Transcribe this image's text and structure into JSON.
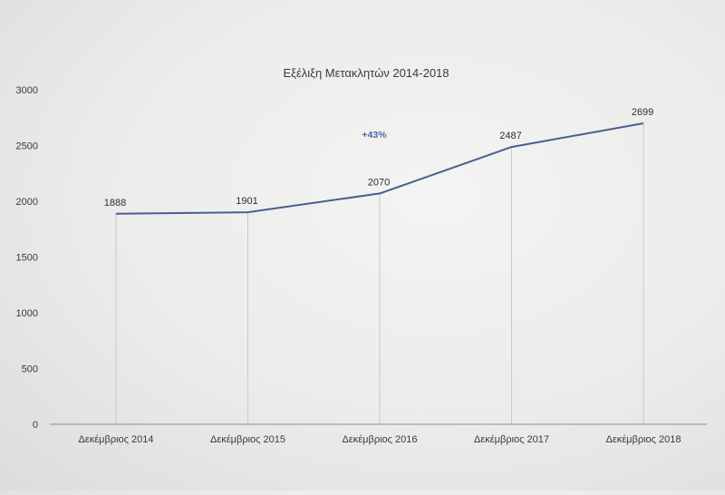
{
  "colors": {
    "line": "#4a5f8f",
    "annotation": "#4b6aa8",
    "axis": "#8c8c8c",
    "droplines": "#c9c9c9"
  },
  "chart_data": {
    "type": "line",
    "title": "Εξέλιξη Μετακλητών 2014-2018",
    "xlabel": "",
    "ylabel": "",
    "categories": [
      "Δεκέμβριος 2014",
      "Δεκέμβριος 2015",
      "Δεκέμβριος 2016",
      "Δεκέμβριος 2017",
      "Δεκέμβριος 2018"
    ],
    "series": [
      {
        "values": [
          1888,
          1901,
          2070,
          2487,
          2699
        ],
        "data_labels": [
          "1888",
          "1901",
          "2070",
          "2487",
          "2699"
        ]
      }
    ],
    "ylim": [
      0,
      3000
    ],
    "y_ticks": [
      "0",
      "500",
      "1000",
      "1500",
      "2000",
      "2500",
      "3000"
    ],
    "grid": false,
    "drop_lines": true,
    "legend": "none",
    "annotation": "+43%"
  }
}
